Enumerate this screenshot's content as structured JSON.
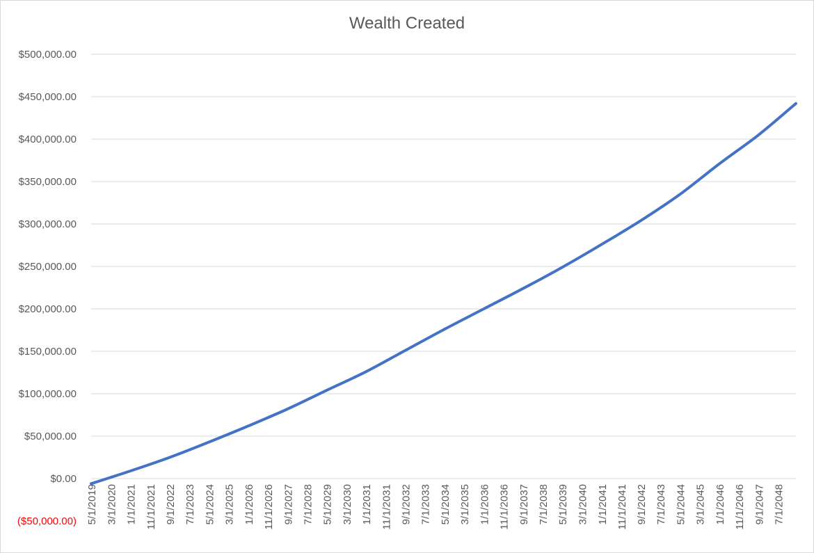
{
  "chart_data": {
    "type": "line",
    "title": "Wealth Created",
    "xlabel": "",
    "ylabel": "",
    "ylim": [
      -50000,
      500000
    ],
    "y_tick_labels": [
      "$500,000.00",
      "$450,000.00",
      "$400,000.00",
      "$350,000.00",
      "$300,000.00",
      "$250,000.00",
      "$200,000.00",
      "$150,000.00",
      "$100,000.00",
      "$50,000.00",
      "$0.00",
      "($50,000.00)"
    ],
    "y_ticks": [
      500000,
      450000,
      400000,
      350000,
      300000,
      250000,
      200000,
      150000,
      100000,
      50000,
      0,
      -50000
    ],
    "x_tick_labels": [
      "5/1/2019",
      "3/1/2020",
      "1/1/2021",
      "11/1/2021",
      "9/1/2022",
      "7/1/2023",
      "5/1/2024",
      "3/1/2025",
      "1/1/2026",
      "11/1/2026",
      "9/1/2027",
      "7/1/2028",
      "5/1/2029",
      "3/1/2030",
      "1/1/2031",
      "11/1/2031",
      "9/1/2032",
      "7/1/2033",
      "5/1/2034",
      "3/1/2035",
      "1/1/2036",
      "11/1/2036",
      "9/1/2037",
      "7/1/2038",
      "5/1/2039",
      "3/1/2040",
      "1/1/2041",
      "11/1/2041",
      "9/1/2042",
      "7/1/2043",
      "5/1/2044",
      "3/1/2045",
      "1/1/2046",
      "11/1/2046",
      "9/1/2047",
      "7/1/2048"
    ],
    "x_start": "5/1/2019",
    "x_end": "4/1/2049",
    "grid": true,
    "legend": "none",
    "negative_label_color": "#ff0000",
    "series": [
      {
        "color": "#4472c4",
        "x": [
          "5/1/2019",
          "1/1/2021",
          "9/1/2022",
          "5/1/2024",
          "1/1/2026",
          "9/1/2027",
          "5/1/2029",
          "1/1/2031",
          "9/1/2032",
          "5/1/2034",
          "1/1/2036",
          "9/1/2037",
          "5/1/2039",
          "1/1/2041",
          "9/1/2042",
          "5/1/2044",
          "1/1/2046",
          "9/1/2047",
          "4/1/2049"
        ],
        "y": [
          -6000,
          9000,
          25000,
          43000,
          62000,
          82000,
          104000,
          126000,
          151000,
          176000,
          200000,
          224000,
          249000,
          276000,
          304000,
          335000,
          371000,
          405000,
          442000
        ]
      }
    ]
  }
}
